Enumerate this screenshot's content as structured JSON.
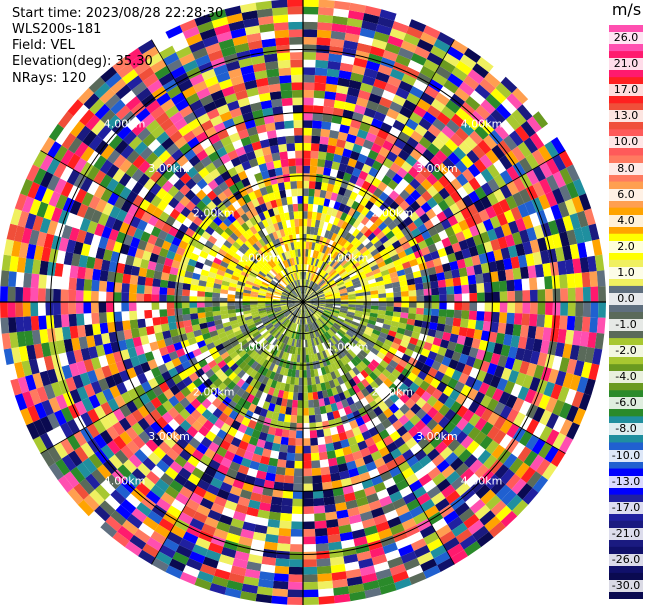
{
  "header": {
    "start_time": "Start time: 2023/08/28 22:28:30",
    "instrument": "WLS200s-181",
    "field": "Field: VEL",
    "elevation": "Elevation(deg): 35.30",
    "nrays": "NRays: 120"
  },
  "colorbar": {
    "unit": "m/s",
    "labels": [
      "26.0",
      "21.0",
      "17.0",
      "13.0",
      "10.0",
      "8.0",
      "6.0",
      "4.0",
      "2.0",
      "1.0",
      "0.0",
      "-1.0",
      "-2.0",
      "-4.0",
      "-6.0",
      "-8.0",
      "-10.0",
      "-13.0",
      "-17.0",
      "-21.0",
      "-26.0",
      "-30.0"
    ],
    "colors": [
      "#ff4fb0",
      "#ff1a6e",
      "#ff2020",
      "#f04f3a",
      "#ff5a5a",
      "#ff7a60",
      "#ff9f50",
      "#ffa400",
      "#ffff00",
      "#f0f060",
      "#5f6f7f",
      "#5a6a5a",
      "#a8c830",
      "#6a9a20",
      "#2a8a2a",
      "#1f8f9f",
      "#2060d0",
      "#0000ff",
      "#2020a0",
      "#1a1a80",
      "#10106a",
      "#0a0a50"
    ]
  },
  "range_labels": [
    "1.00km",
    "2.00km",
    "3.00km",
    "4.00km"
  ],
  "ppi": {
    "nrays": 120,
    "ngates": 40,
    "max_range_km": 4.8
  }
}
